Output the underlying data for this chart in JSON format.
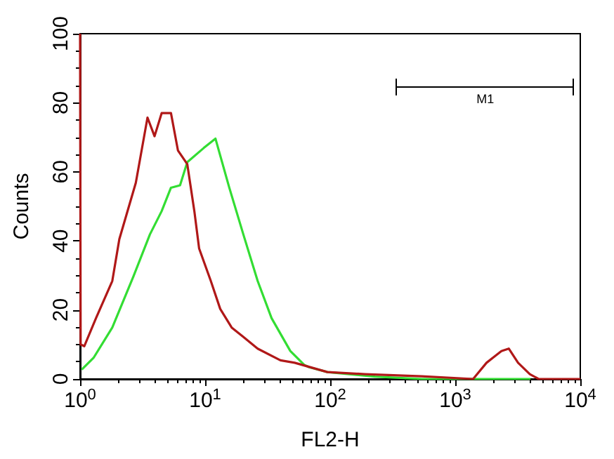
{
  "chart_data": {
    "type": "line",
    "xlabel": "FL2-H",
    "ylabel": "Counts",
    "log": "x",
    "xlim": [
      1,
      10000
    ],
    "xticks": [
      {
        "value": 1,
        "label": "10$^{0}$"
      },
      {
        "value": 10,
        "label": "10$^{1}$"
      },
      {
        "value": 100,
        "label": "10$^{2}$"
      },
      {
        "value": 1000,
        "label": "10$^{3}$"
      },
      {
        "value": 10000,
        "label": "10$^{4}$"
      }
    ],
    "ylim": [
      0,
      100
    ],
    "yticks": [
      0,
      20,
      40,
      60,
      80,
      100
    ],
    "marker": "none",
    "line_style": "solid",
    "annotations": [
      "M1"
    ],
    "series": [
      {
        "color": "#33dd33",
        "x": [
          1.03,
          1.28,
          1.81,
          2.67,
          3.62,
          4.49,
          5.33,
          6.3,
          7.2,
          9.75,
          12.1,
          15.6,
          20.2,
          26.3,
          34,
          48,
          62,
          68,
          95,
          228,
          540,
          4000
        ],
        "values": [
          2.7,
          6.1,
          14.9,
          29.7,
          41.9,
          48.6,
          55.4,
          56.1,
          62.8,
          66.9,
          69.6,
          55.4,
          41.9,
          28.4,
          17.6,
          8.1,
          4.1,
          3.4,
          2,
          0.7,
          0,
          0
        ]
      },
      {
        "color": "#b01818",
        "x": [
          1,
          1.01,
          1.08,
          1.34,
          1.81,
          2.06,
          2.79,
          3.46,
          3.94,
          4.49,
          5.33,
          6.06,
          7.2,
          8.2,
          8.95,
          11.1,
          13.2,
          16.3,
          20.2,
          26.3,
          40,
          52,
          95,
          190,
          540,
          1390,
          1780,
          2340,
          2680,
          3180,
          3950,
          4640,
          10000
        ],
        "values": [
          100,
          10,
          9.5,
          17.6,
          28.4,
          40.5,
          56.8,
          75.7,
          70.3,
          77,
          77,
          66.2,
          62.2,
          48.6,
          37.8,
          28.4,
          20.3,
          14.9,
          12.2,
          8.8,
          5.4,
          4.7,
          2,
          1.4,
          0.8,
          0,
          4.7,
          8.1,
          8.8,
          4.7,
          1.4,
          0,
          0
        ]
      }
    ]
  }
}
